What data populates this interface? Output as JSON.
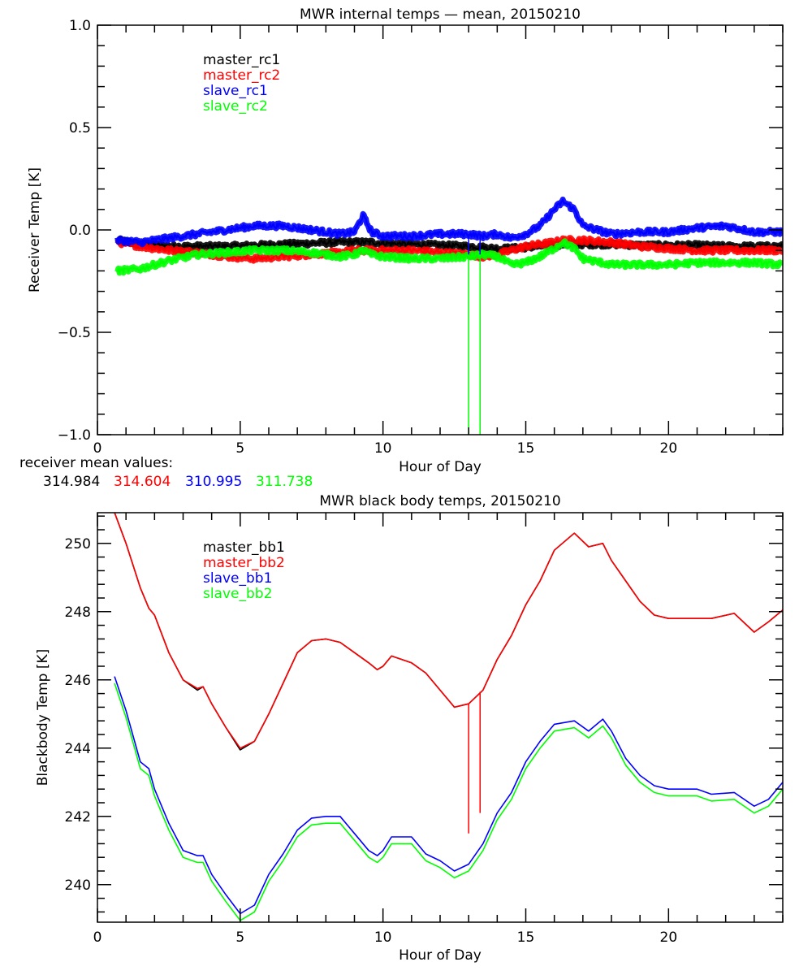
{
  "chart_data": [
    {
      "type": "line",
      "title": "MWR internal temps — mean, 20150210",
      "xlabel": "Hour of Day",
      "ylabel": "Receiver Temp [K]",
      "xlim": [
        0,
        24
      ],
      "ylim": [
        -1.0,
        1.0
      ],
      "xticks": [
        0,
        5,
        10,
        15,
        20
      ],
      "xtick_labels": [
        "0",
        "5",
        "10",
        "15",
        "20"
      ],
      "yticks": [
        -1.0,
        -0.5,
        0.0,
        0.5,
        1.0
      ],
      "ytick_labels": [
        "−1.0",
        "−0.5",
        "0.0",
        "0.5",
        "1.0"
      ],
      "grid": false,
      "legend_position": "top-left",
      "x": [
        0.7,
        1.5,
        2.5,
        3.5,
        4.5,
        5.5,
        6.5,
        7.5,
        8.5,
        9.0,
        9.3,
        9.6,
        10.0,
        11.0,
        12.0,
        13.0,
        13.5,
        14.0,
        14.5,
        15.0,
        15.5,
        16.0,
        16.3,
        16.7,
        17.0,
        18.0,
        19.0,
        20.0,
        21.0,
        22.0,
        23.0,
        24.0
      ],
      "series": [
        {
          "name": "master_rc1",
          "color": "#000000",
          "values": [
            -0.05,
            -0.07,
            -0.08,
            -0.08,
            -0.08,
            -0.075,
            -0.07,
            -0.065,
            -0.06,
            -0.06,
            -0.06,
            -0.06,
            -0.065,
            -0.07,
            -0.075,
            -0.08,
            -0.085,
            -0.09,
            -0.09,
            -0.085,
            -0.08,
            -0.075,
            -0.07,
            -0.07,
            -0.07,
            -0.07,
            -0.075,
            -0.075,
            -0.075,
            -0.08,
            -0.08,
            -0.08
          ]
        },
        {
          "name": "master_rc2",
          "color": "#ff0000",
          "values": [
            -0.06,
            -0.08,
            -0.1,
            -0.11,
            -0.13,
            -0.14,
            -0.13,
            -0.12,
            -0.11,
            -0.1,
            -0.1,
            -0.1,
            -0.1,
            -0.1,
            -0.11,
            -0.12,
            -0.13,
            -0.12,
            -0.1,
            -0.08,
            -0.07,
            -0.06,
            -0.05,
            -0.05,
            -0.05,
            -0.06,
            -0.08,
            -0.09,
            -0.1,
            -0.1,
            -0.1,
            -0.1
          ]
        },
        {
          "name": "slave_rc1",
          "color": "#0000ff",
          "values": [
            -0.05,
            -0.06,
            -0.04,
            -0.02,
            0.0,
            0.02,
            0.02,
            0.0,
            -0.02,
            -0.01,
            0.07,
            -0.01,
            -0.03,
            -0.03,
            -0.02,
            -0.02,
            -0.03,
            -0.02,
            -0.04,
            -0.02,
            0.02,
            0.1,
            0.14,
            0.1,
            0.02,
            -0.02,
            -0.01,
            -0.01,
            0.01,
            0.02,
            -0.01,
            -0.01
          ]
        },
        {
          "name": "slave_rc2",
          "color": "#00ff00",
          "values": [
            -0.2,
            -0.19,
            -0.15,
            -0.12,
            -0.11,
            -0.1,
            -0.1,
            -0.11,
            -0.13,
            -0.12,
            -0.1,
            -0.12,
            -0.13,
            -0.14,
            -0.14,
            -0.13,
            -0.12,
            -0.13,
            -0.17,
            -0.16,
            -0.13,
            -0.09,
            -0.06,
            -0.09,
            -0.14,
            -0.17,
            -0.17,
            -0.17,
            -0.16,
            -0.16,
            -0.16,
            -0.17
          ]
        }
      ],
      "spikes": [
        {
          "series": "slave_rc2",
          "x": 13.0,
          "from": -0.12,
          "to": -1.0
        },
        {
          "series": "slave_rc2",
          "x": 13.4,
          "from": -0.12,
          "to": -1.0
        },
        {
          "series": "slave_rc1",
          "x": 13.0,
          "from": -0.02,
          "to": -0.12
        },
        {
          "series": "slave_rc1",
          "x": 13.4,
          "from": -0.02,
          "to": -0.12
        }
      ],
      "annotation": {
        "label": "receiver mean values:",
        "values": [
          {
            "value": "314.984",
            "color": "#000000"
          },
          {
            "value": "314.604",
            "color": "#ff0000"
          },
          {
            "value": "310.995",
            "color": "#0000ff"
          },
          {
            "value": "311.738",
            "color": "#00ff00"
          }
        ]
      }
    },
    {
      "type": "line",
      "title": "MWR black body temps, 20150210",
      "xlabel": "Hour of Day",
      "ylabel": "Blackbody Temp [K]",
      "xlim": [
        0,
        24
      ],
      "ylim": [
        238.9,
        250.9
      ],
      "xticks": [
        0,
        5,
        10,
        15,
        20
      ],
      "xtick_labels": [
        "0",
        "5",
        "10",
        "15",
        "20"
      ],
      "yticks": [
        240,
        242,
        244,
        246,
        248,
        250
      ],
      "ytick_labels": [
        "240",
        "242",
        "244",
        "246",
        "248",
        "250"
      ],
      "grid": false,
      "legend_position": "top-left",
      "x": [
        0.6,
        1.0,
        1.5,
        1.8,
        2.0,
        2.5,
        3.0,
        3.5,
        3.7,
        4.0,
        4.5,
        5.0,
        5.5,
        6.0,
        6.5,
        7.0,
        7.5,
        8.0,
        8.5,
        9.0,
        9.5,
        9.8,
        10.0,
        10.3,
        11.0,
        11.5,
        12.0,
        12.5,
        13.0,
        13.5,
        14.0,
        14.5,
        15.0,
        15.5,
        16.0,
        16.7,
        17.2,
        17.7,
        18.0,
        18.5,
        19.0,
        19.5,
        20.0,
        21.0,
        21.5,
        22.3,
        23.0,
        23.5,
        24.0
      ],
      "series": [
        {
          "name": "master_bb1",
          "color": "#000000",
          "values": [
            250.9,
            250.0,
            248.7,
            248.1,
            247.9,
            246.8,
            246.0,
            245.7,
            245.8,
            245.3,
            244.6,
            243.95,
            244.2,
            245.0,
            245.9,
            246.8,
            247.15,
            247.2,
            247.1,
            246.8,
            246.5,
            246.3,
            246.4,
            246.7,
            246.5,
            246.2,
            245.7,
            245.2,
            245.3,
            245.7,
            246.6,
            247.3,
            248.2,
            248.9,
            249.8,
            250.3,
            249.9,
            250.0,
            249.5,
            248.9,
            248.3,
            247.9,
            247.8,
            247.8,
            247.8,
            247.95,
            247.4,
            247.7,
            248.05
          ]
        },
        {
          "name": "master_bb2",
          "color": "#ff0000",
          "values": [
            250.9,
            250.0,
            248.7,
            248.1,
            247.9,
            246.8,
            246.0,
            245.75,
            245.8,
            245.3,
            244.6,
            244.0,
            244.2,
            245.0,
            245.9,
            246.8,
            247.15,
            247.2,
            247.1,
            246.8,
            246.5,
            246.3,
            246.4,
            246.7,
            246.5,
            246.2,
            245.7,
            245.2,
            245.3,
            245.7,
            246.6,
            247.3,
            248.2,
            248.9,
            249.8,
            250.3,
            249.9,
            250.0,
            249.5,
            248.9,
            248.3,
            247.9,
            247.8,
            247.8,
            247.8,
            247.95,
            247.4,
            247.7,
            248.05
          ]
        },
        {
          "name": "slave_bb1",
          "color": "#0000ff",
          "values": [
            246.1,
            245.1,
            243.6,
            243.4,
            242.8,
            241.8,
            241.0,
            240.85,
            240.85,
            240.3,
            239.7,
            239.15,
            239.4,
            240.3,
            240.9,
            241.6,
            241.95,
            242.0,
            242.0,
            241.5,
            241.0,
            240.85,
            241.0,
            241.4,
            241.4,
            240.9,
            240.7,
            240.4,
            240.6,
            241.2,
            242.1,
            242.7,
            243.6,
            244.2,
            244.7,
            244.8,
            244.5,
            244.85,
            244.5,
            243.7,
            243.2,
            242.9,
            242.8,
            242.8,
            242.65,
            242.7,
            242.3,
            242.5,
            243.0
          ]
        },
        {
          "name": "slave_bb2",
          "color": "#00ff00",
          "values": [
            245.9,
            244.9,
            243.4,
            243.2,
            242.6,
            241.6,
            240.8,
            240.65,
            240.65,
            240.1,
            239.5,
            238.95,
            239.2,
            240.1,
            240.7,
            241.4,
            241.75,
            241.8,
            241.8,
            241.3,
            240.8,
            240.65,
            240.8,
            241.2,
            241.2,
            240.7,
            240.5,
            240.2,
            240.4,
            241.0,
            241.9,
            242.5,
            243.4,
            244.0,
            244.5,
            244.6,
            244.3,
            244.65,
            244.3,
            243.5,
            243.0,
            242.7,
            242.6,
            242.6,
            242.45,
            242.5,
            242.1,
            242.3,
            242.8
          ]
        }
      ],
      "spikes": [
        {
          "series": "master_bb2",
          "x": 13.0,
          "from": 245.3,
          "to": 241.5
        },
        {
          "series": "master_bb2",
          "x": 13.4,
          "from": 245.65,
          "to": 242.1
        }
      ]
    }
  ]
}
